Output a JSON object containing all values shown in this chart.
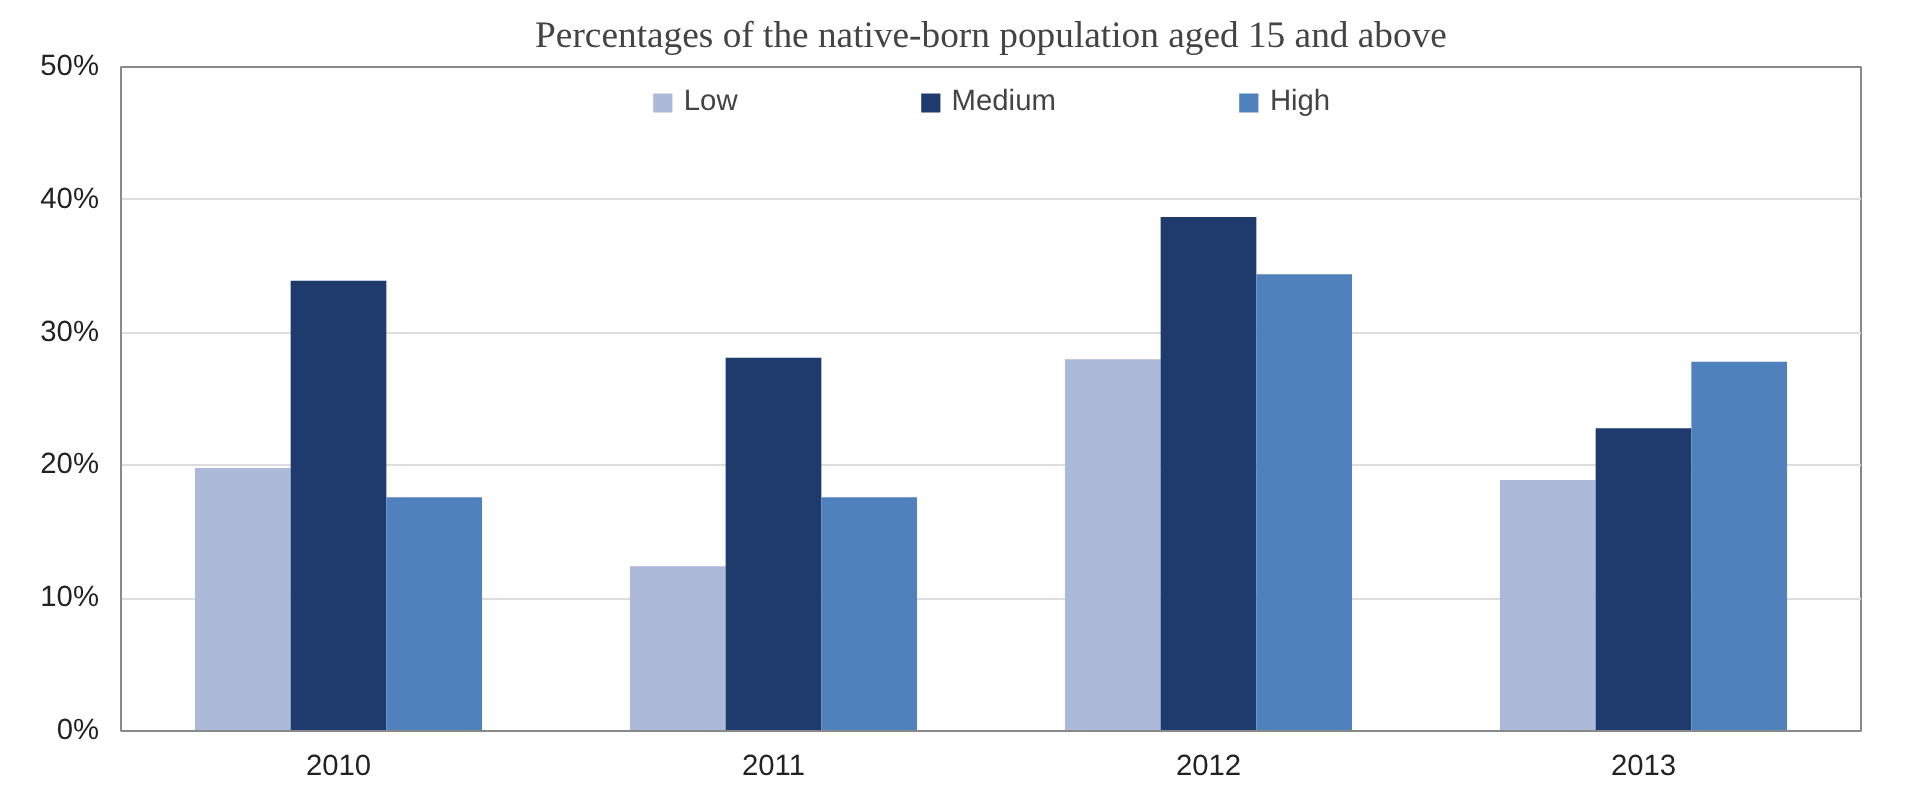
{
  "chart_data": {
    "type": "bar",
    "title": "Percentages of the native-born population aged 15 and above",
    "categories": [
      "2010",
      "2011",
      "2012",
      "2013"
    ],
    "series": [
      {
        "name": "Low",
        "color": "#adb9d9",
        "values": [
          19.8,
          12.4,
          28.0,
          18.9
        ]
      },
      {
        "name": "Medium",
        "color": "#1f3b6e",
        "values": [
          33.9,
          28.1,
          38.7,
          22.8
        ]
      },
      {
        "name": "High",
        "color": "#4f81bd",
        "values": [
          17.6,
          17.6,
          34.4,
          27.8
        ]
      }
    ],
    "ylim": [
      0,
      50
    ],
    "yticks": [
      {
        "value": 0,
        "label": "0%"
      },
      {
        "value": 10,
        "label": "10%"
      },
      {
        "value": 20,
        "label": "20%"
      },
      {
        "value": 30,
        "label": "30%"
      },
      {
        "value": 40,
        "label": "40%"
      },
      {
        "value": 50,
        "label": "50%"
      }
    ],
    "grid": "y",
    "legend": "top"
  }
}
